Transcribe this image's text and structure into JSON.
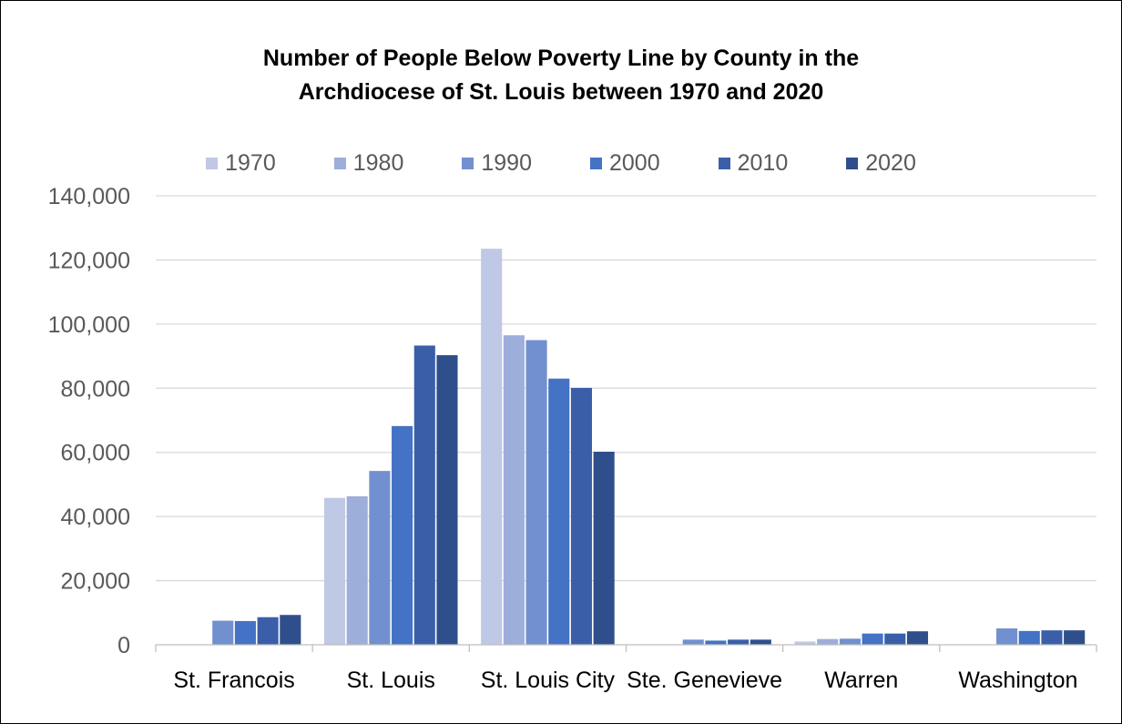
{
  "chart_data": {
    "type": "bar",
    "title_lines": [
      "Number of People Below Poverty Line by County in the",
      "Archdiocese of St. Louis between 1970 and 2020"
    ],
    "xlabel": "",
    "ylabel": "",
    "ylim": [
      0,
      140000
    ],
    "yticks": [
      "0",
      "20,000",
      "40,000",
      "60,000",
      "80,000",
      "100,000",
      "120,000",
      "140,000"
    ],
    "grid": true,
    "legend_position": "top",
    "categories": [
      "St. Francois",
      "St. Louis",
      "St. Louis City",
      "Ste. Genevieve",
      "Warren",
      "Washington"
    ],
    "series": [
      {
        "name": "1970",
        "color": "#bfc8e5",
        "values": [
          0,
          45800,
          123500,
          0,
          1000,
          0
        ]
      },
      {
        "name": "1980",
        "color": "#9eaedb",
        "values": [
          0,
          46300,
          96500,
          0,
          1800,
          0
        ]
      },
      {
        "name": "1990",
        "color": "#7290cf",
        "values": [
          7500,
          54200,
          95000,
          1600,
          1900,
          5100
        ]
      },
      {
        "name": "2000",
        "color": "#4472c4",
        "values": [
          7400,
          68200,
          83000,
          1300,
          3500,
          4300
        ]
      },
      {
        "name": "2010",
        "color": "#3a5fa8",
        "values": [
          8600,
          93300,
          80100,
          1600,
          3500,
          4500
        ]
      },
      {
        "name": "2020",
        "color": "#2f4f8c",
        "values": [
          9300,
          90300,
          60200,
          1600,
          4200,
          4500
        ]
      }
    ]
  }
}
